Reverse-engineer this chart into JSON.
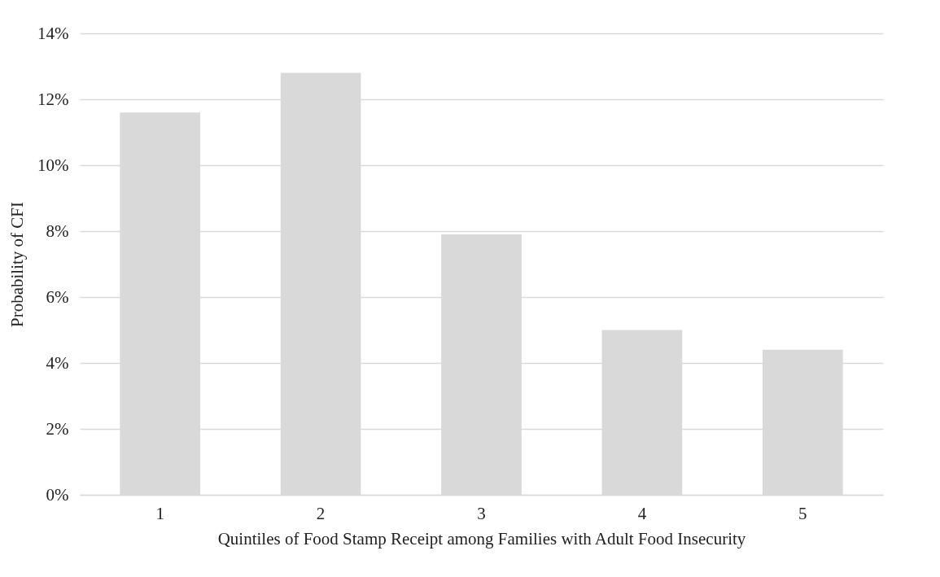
{
  "chart_data": {
    "type": "bar",
    "xlabel": "Quintiles of Food Stamp Receipt among Families with Adult Food Insecurity",
    "ylabel": "Probability of CFI",
    "categories": [
      "1",
      "2",
      "3",
      "4",
      "5"
    ],
    "values": [
      11.6,
      12.8,
      7.9,
      5.0,
      4.4
    ],
    "color": "#d9d9d9",
    "ylim": [
      0,
      14
    ],
    "yticks": [
      {
        "value": 0,
        "label": "0%"
      },
      {
        "value": 2,
        "label": "2%"
      },
      {
        "value": 4,
        "label": "4%"
      },
      {
        "value": 6,
        "label": "6%"
      },
      {
        "value": 8,
        "label": "8%"
      },
      {
        "value": 10,
        "label": "10%"
      },
      {
        "value": 12,
        "label": "12%"
      },
      {
        "value": 14,
        "label": "14%"
      }
    ],
    "grid": "y"
  }
}
